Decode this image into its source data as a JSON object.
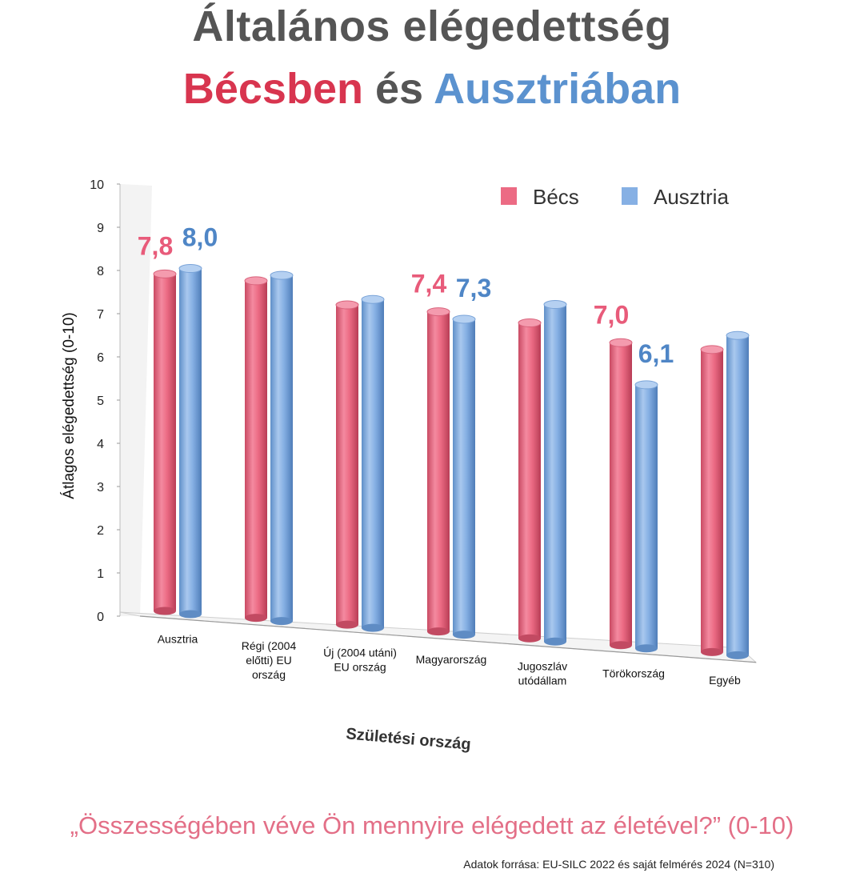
{
  "title_line1": "Általános elégedettség",
  "title_line2": {
    "part1": "Bécsben",
    "part2": " és ",
    "part3": "Ausztriában"
  },
  "question": "„Összességében véve Ön mennyire elégedett az életével?” (0-10)",
  "source": "Adatok forrása: EU-SILC 2022 és saját felmérés 2024 (N=310)",
  "colors": {
    "becs": "#ec6b84",
    "ausztria": "#86b0e4",
    "becs_label": "#e85b7a",
    "ausztria_label": "#4f86c6"
  },
  "chart_data": {
    "type": "bar",
    "ylabel": "Átlagos elégedettség (0-10)",
    "xlabel": "Születési ország",
    "ylim": [
      0,
      10
    ],
    "yticks": [
      "0",
      "1",
      "2",
      "3",
      "4",
      "5",
      "6",
      "7",
      "8",
      "9",
      "10"
    ],
    "legend_position": "top-right",
    "categories": [
      [
        "Ausztria"
      ],
      [
        "Régi (2004",
        "előtti) EU",
        "ország"
      ],
      [
        "Új (2004 utáni)",
        "EU ország"
      ],
      [
        "Magyarország"
      ],
      [
        "Jugoszláv",
        "utódállam"
      ],
      [
        "Törökország"
      ],
      [
        "Egyéb"
      ]
    ],
    "series": [
      {
        "name": "Bécs",
        "values": [
          7.8,
          7.8,
          7.4,
          7.4,
          7.3,
          7.0,
          7.0
        ]
      },
      {
        "name": "Ausztria",
        "values": [
          8.0,
          8.0,
          7.6,
          7.3,
          7.8,
          6.1,
          7.4
        ]
      }
    ],
    "data_labels": [
      {
        "series": 0,
        "index": 0,
        "text": "7,8"
      },
      {
        "series": 1,
        "index": 0,
        "text": "8,0"
      },
      {
        "series": 0,
        "index": 3,
        "text": "7,4"
      },
      {
        "series": 1,
        "index": 3,
        "text": "7,3"
      },
      {
        "series": 0,
        "index": 5,
        "text": "7,0"
      },
      {
        "series": 1,
        "index": 5,
        "text": "6,1"
      }
    ]
  }
}
